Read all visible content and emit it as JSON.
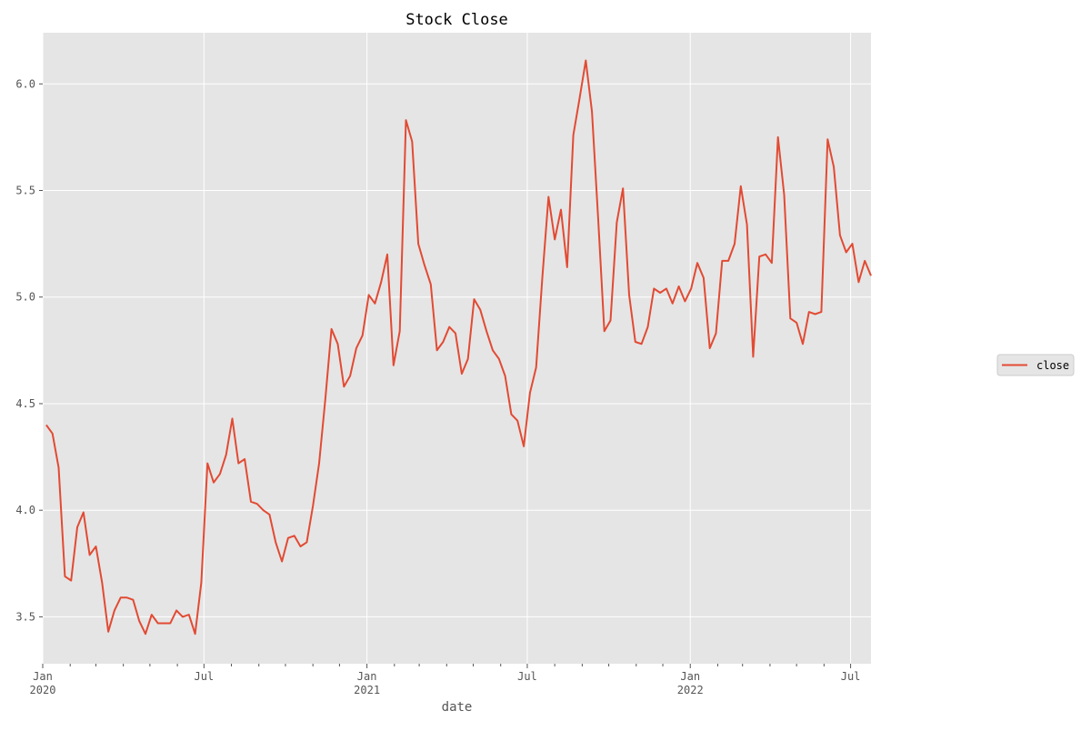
{
  "chart_data": {
    "type": "line",
    "title": "Stock Close",
    "xlabel": "date",
    "ylabel": "",
    "ylim": [
      3.28,
      6.24
    ],
    "xlim": [
      "2020-01-01",
      "2022-07-24"
    ],
    "grid": true,
    "legend_position": "right-center",
    "line_color": "#E24A33",
    "background_color": "#E5E5E5",
    "grid_color": "#FFFFFF",
    "y_ticks": [
      {
        "value": 3.5,
        "label": "3.5"
      },
      {
        "value": 4.0,
        "label": "4.0"
      },
      {
        "value": 4.5,
        "label": "4.5"
      },
      {
        "value": 5.0,
        "label": "5.0"
      },
      {
        "value": 5.5,
        "label": "5.5"
      },
      {
        "value": 6.0,
        "label": "6.0"
      }
    ],
    "x_ticks": [
      {
        "date": "2020-01-01",
        "label": "Jan",
        "sublabel": "2020"
      },
      {
        "date": "2020-07-01",
        "label": "Jul",
        "sublabel": ""
      },
      {
        "date": "2021-01-01",
        "label": "Jan",
        "sublabel": "2021"
      },
      {
        "date": "2021-07-01",
        "label": "Jul",
        "sublabel": ""
      },
      {
        "date": "2022-01-01",
        "label": "Jan",
        "sublabel": "2022"
      },
      {
        "date": "2022-07-01",
        "label": "Jul",
        "sublabel": ""
      }
    ],
    "series": [
      {
        "name": "close",
        "x": [
          "2020-01-05",
          "2020-01-12",
          "2020-01-19",
          "2020-01-26",
          "2020-02-02",
          "2020-02-09",
          "2020-02-16",
          "2020-02-23",
          "2020-03-01",
          "2020-03-08",
          "2020-03-15",
          "2020-03-22",
          "2020-03-29",
          "2020-04-05",
          "2020-04-12",
          "2020-04-19",
          "2020-04-26",
          "2020-05-03",
          "2020-05-10",
          "2020-05-17",
          "2020-05-24",
          "2020-05-31",
          "2020-06-07",
          "2020-06-14",
          "2020-06-21",
          "2020-06-28",
          "2020-07-05",
          "2020-07-12",
          "2020-07-19",
          "2020-07-26",
          "2020-08-02",
          "2020-08-09",
          "2020-08-16",
          "2020-08-23",
          "2020-08-30",
          "2020-09-06",
          "2020-09-13",
          "2020-09-20",
          "2020-09-27",
          "2020-10-04",
          "2020-10-11",
          "2020-10-18",
          "2020-10-25",
          "2020-11-01",
          "2020-11-08",
          "2020-11-15",
          "2020-11-22",
          "2020-11-29",
          "2020-12-06",
          "2020-12-13",
          "2020-12-20",
          "2020-12-27",
          "2021-01-03",
          "2021-01-10",
          "2021-01-17",
          "2021-01-24",
          "2021-01-31",
          "2021-02-07",
          "2021-02-14",
          "2021-02-21",
          "2021-02-28",
          "2021-03-07",
          "2021-03-14",
          "2021-03-21",
          "2021-03-28",
          "2021-04-04",
          "2021-04-11",
          "2021-04-18",
          "2021-04-25",
          "2021-05-02",
          "2021-05-09",
          "2021-05-16",
          "2021-05-23",
          "2021-05-30",
          "2021-06-06",
          "2021-06-13",
          "2021-06-20",
          "2021-06-27",
          "2021-07-04",
          "2021-07-11",
          "2021-07-18",
          "2021-07-25",
          "2021-08-01",
          "2021-08-08",
          "2021-08-15",
          "2021-08-22",
          "2021-08-29",
          "2021-09-05",
          "2021-09-12",
          "2021-09-19",
          "2021-09-26",
          "2021-10-03",
          "2021-10-10",
          "2021-10-17",
          "2021-10-24",
          "2021-10-31",
          "2021-11-07",
          "2021-11-14",
          "2021-11-21",
          "2021-11-28",
          "2021-12-05",
          "2021-12-12",
          "2021-12-19",
          "2021-12-26",
          "2022-01-02",
          "2022-01-09",
          "2022-01-16",
          "2022-01-23",
          "2022-01-30",
          "2022-02-06",
          "2022-02-13",
          "2022-02-20",
          "2022-02-27",
          "2022-03-06",
          "2022-03-13",
          "2022-03-20",
          "2022-03-27",
          "2022-04-03",
          "2022-04-10",
          "2022-04-17",
          "2022-04-24",
          "2022-05-01",
          "2022-05-08",
          "2022-05-15",
          "2022-05-22",
          "2022-05-29",
          "2022-06-05",
          "2022-06-12",
          "2022-06-19",
          "2022-06-26",
          "2022-07-03",
          "2022-07-10",
          "2022-07-17",
          "2022-07-24"
        ],
        "values": [
          4.4,
          4.36,
          4.2,
          3.69,
          3.67,
          3.92,
          3.99,
          3.79,
          3.83,
          3.66,
          3.43,
          3.53,
          3.59,
          3.59,
          3.58,
          3.48,
          3.42,
          3.51,
          3.47,
          3.47,
          3.47,
          3.53,
          3.5,
          3.51,
          3.42,
          3.66,
          4.22,
          4.13,
          4.17,
          4.26,
          4.43,
          4.22,
          4.24,
          4.04,
          4.03,
          4.0,
          3.98,
          3.85,
          3.76,
          3.87,
          3.88,
          3.83,
          3.85,
          4.02,
          4.22,
          4.52,
          4.85,
          4.78,
          4.58,
          4.63,
          4.76,
          4.82,
          5.01,
          4.97,
          5.07,
          5.2,
          4.68,
          4.84,
          5.83,
          5.73,
          5.25,
          5.15,
          5.06,
          4.75,
          4.79,
          4.86,
          4.83,
          4.64,
          4.71,
          4.99,
          4.94,
          4.84,
          4.75,
          4.71,
          4.63,
          4.45,
          4.42,
          4.3,
          4.55,
          4.67,
          5.09,
          5.47,
          5.27,
          5.41,
          5.14,
          5.76,
          5.93,
          6.11,
          5.87,
          5.37,
          4.84,
          4.89,
          5.35,
          5.51,
          5.01,
          4.79,
          4.78,
          4.86,
          5.04,
          5.02,
          5.04,
          4.97,
          5.05,
          4.98,
          5.04,
          5.16,
          5.09,
          4.76,
          4.83,
          5.17,
          5.17,
          5.25,
          5.52,
          5.34,
          4.72,
          5.19,
          5.2,
          5.16,
          5.75,
          5.48,
          4.9,
          4.88,
          4.78,
          4.93,
          4.92,
          4.93,
          5.74,
          5.61,
          5.29,
          5.21,
          5.25,
          5.07,
          5.17,
          5.1
        ]
      }
    ]
  }
}
